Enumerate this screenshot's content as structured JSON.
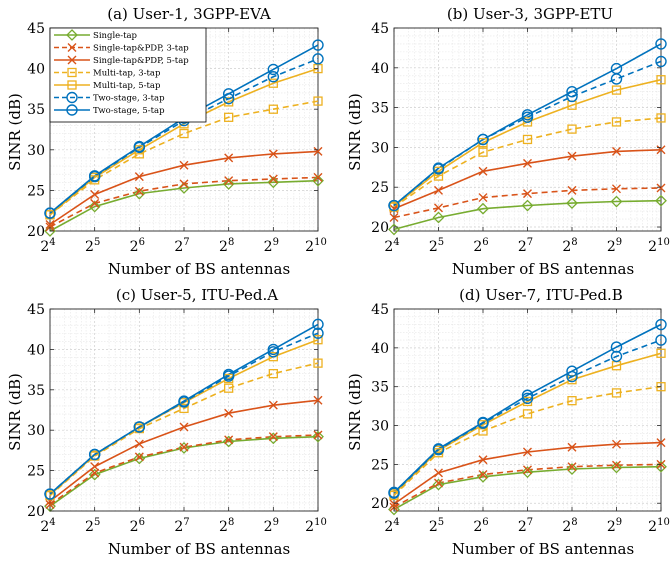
{
  "chart_data": [
    {
      "type": "line",
      "title": "(a) User-1, 3GPP-EVA",
      "xlabel": "Number of BS antennas",
      "ylabel": "SINR (dB)",
      "x": [
        4,
        5,
        6,
        7,
        8,
        9,
        10
      ],
      "x_ticks": [
        4,
        5,
        6,
        7,
        8,
        9,
        10
      ],
      "x_scale": "log2 (ticks 2^4 to 2^10)",
      "ylim": [
        20,
        45
      ],
      "y_ticks": [
        20,
        25,
        30,
        35,
        40,
        45
      ],
      "grid": true,
      "legend_position": "top-left",
      "series": [
        {
          "name": "Single-tap",
          "values": [
            20.0,
            23.0,
            24.6,
            25.3,
            25.8,
            26.0,
            26.2
          ]
        },
        {
          "name": "Single-tap&PDP, 3-tap",
          "values": [
            20.5,
            23.4,
            24.9,
            25.8,
            26.2,
            26.4,
            26.6
          ]
        },
        {
          "name": "Single-tap&PDP, 5-tap",
          "values": [
            20.8,
            24.5,
            26.7,
            28.1,
            29.0,
            29.5,
            29.8
          ]
        },
        {
          "name": "Multi-tap, 3-tap",
          "values": [
            22.0,
            26.3,
            29.5,
            32.0,
            34.0,
            35.0,
            36.0
          ]
        },
        {
          "name": "Multi-tap, 5-tap",
          "values": [
            22.0,
            26.6,
            30.0,
            33.2,
            35.9,
            38.2,
            40.0
          ]
        },
        {
          "name": "Two-stage, 3-tap",
          "values": [
            22.2,
            26.7,
            30.3,
            33.6,
            36.3,
            39.0,
            41.2
          ]
        },
        {
          "name": "Two-stage, 5-tap",
          "values": [
            22.2,
            26.8,
            30.4,
            33.9,
            36.9,
            39.9,
            42.9
          ]
        }
      ]
    },
    {
      "type": "line",
      "title": "(b) User-3, 3GPP-ETU",
      "xlabel": "Number of BS antennas",
      "ylabel": "SINR (dB)",
      "x": [
        4,
        5,
        6,
        7,
        8,
        9,
        10
      ],
      "x_ticks": [
        4,
        5,
        6,
        7,
        8,
        9,
        10
      ],
      "x_scale": "log2 (ticks 2^4 to 2^10)",
      "ylim": [
        19.5,
        45
      ],
      "y_ticks": [
        20,
        25,
        30,
        35,
        40,
        45
      ],
      "grid": true,
      "series": [
        {
          "name": "Single-tap",
          "values": [
            19.7,
            21.2,
            22.3,
            22.7,
            23.0,
            23.2,
            23.3
          ]
        },
        {
          "name": "Single-tap&PDP, 3-tap",
          "values": [
            21.2,
            22.4,
            23.7,
            24.2,
            24.6,
            24.8,
            24.9
          ]
        },
        {
          "name": "Single-tap&PDP, 5-tap",
          "values": [
            22.3,
            24.6,
            27.0,
            28.0,
            28.9,
            29.5,
            29.7
          ]
        },
        {
          "name": "Multi-tap, 3-tap",
          "values": [
            22.5,
            26.4,
            29.4,
            31.0,
            32.3,
            33.2,
            33.7
          ]
        },
        {
          "name": "Multi-tap, 5-tap",
          "values": [
            22.6,
            27.0,
            30.6,
            33.2,
            35.3,
            37.2,
            38.5
          ]
        },
        {
          "name": "Two-stage, 3-tap",
          "values": [
            22.7,
            27.3,
            31.0,
            33.8,
            36.4,
            38.6,
            40.8
          ]
        },
        {
          "name": "Two-stage, 5-tap",
          "values": [
            22.7,
            27.4,
            31.0,
            34.1,
            37.0,
            39.9,
            43.0
          ]
        }
      ]
    },
    {
      "type": "line",
      "title": "(c) User-5, ITU-Ped.A",
      "xlabel": "Number of BS antennas",
      "ylabel": "SINR (dB)",
      "x": [
        4,
        5,
        6,
        7,
        8,
        9,
        10
      ],
      "x_ticks": [
        4,
        5,
        6,
        7,
        8,
        9,
        10
      ],
      "x_scale": "log2 (ticks 2^4 to 2^10)",
      "ylim": [
        20,
        45
      ],
      "y_ticks": [
        20,
        25,
        30,
        35,
        40,
        45
      ],
      "grid": true,
      "series": [
        {
          "name": "Single-tap",
          "values": [
            20.6,
            24.5,
            26.5,
            27.8,
            28.6,
            29.0,
            29.2
          ]
        },
        {
          "name": "Single-tap&PDP, 3-tap",
          "values": [
            20.8,
            24.7,
            26.7,
            27.9,
            28.8,
            29.2,
            29.4
          ]
        },
        {
          "name": "Single-tap&PDP, 5-tap",
          "values": [
            21.2,
            25.5,
            28.3,
            30.4,
            32.1,
            33.1,
            33.7
          ]
        },
        {
          "name": "Multi-tap, 3-tap",
          "values": [
            21.9,
            26.8,
            30.2,
            32.7,
            35.2,
            37.0,
            38.3
          ]
        },
        {
          "name": "Multi-tap, 5-tap",
          "values": [
            22.0,
            26.9,
            30.4,
            33.4,
            36.4,
            39.1,
            41.2
          ]
        },
        {
          "name": "Two-stage, 3-tap",
          "values": [
            22.1,
            27.0,
            30.4,
            33.5,
            36.7,
            39.7,
            42.0
          ]
        },
        {
          "name": "Two-stage, 5-tap",
          "values": [
            22.1,
            27.0,
            30.4,
            33.6,
            36.9,
            40.0,
            43.1
          ]
        }
      ]
    },
    {
      "type": "line",
      "title": "(d) User-7, ITU-Ped.B",
      "xlabel": "Number of BS antennas",
      "ylabel": "SINR (dB)",
      "x": [
        4,
        5,
        6,
        7,
        8,
        9,
        10
      ],
      "x_ticks": [
        4,
        5,
        6,
        7,
        8,
        9,
        10
      ],
      "x_scale": "log2 (ticks 2^4 to 2^10)",
      "ylim": [
        19,
        45
      ],
      "y_ticks": [
        20,
        25,
        30,
        35,
        40,
        45
      ],
      "grid": true,
      "series": [
        {
          "name": "Single-tap",
          "values": [
            19.2,
            22.4,
            23.4,
            24.0,
            24.4,
            24.6,
            24.7
          ]
        },
        {
          "name": "Single-tap&PDP, 3-tap",
          "values": [
            19.5,
            22.6,
            23.7,
            24.3,
            24.7,
            24.9,
            25.0
          ]
        },
        {
          "name": "Single-tap&PDP, 5-tap",
          "values": [
            19.9,
            23.9,
            25.6,
            26.6,
            27.2,
            27.6,
            27.8
          ]
        },
        {
          "name": "Multi-tap, 3-tap",
          "values": [
            21.0,
            26.5,
            29.3,
            31.5,
            33.2,
            34.2,
            35.0
          ]
        },
        {
          "name": "Multi-tap, 5-tap",
          "values": [
            21.2,
            26.8,
            30.1,
            33.1,
            35.9,
            37.7,
            39.3
          ]
        },
        {
          "name": "Two-stage, 3-tap",
          "values": [
            21.3,
            26.9,
            30.3,
            33.5,
            36.3,
            38.9,
            41.0
          ]
        },
        {
          "name": "Two-stage, 5-tap",
          "values": [
            21.4,
            27.0,
            30.4,
            33.9,
            37.0,
            40.1,
            43.0
          ]
        }
      ]
    }
  ],
  "series_styles": [
    {
      "color": "#77AC30",
      "dash": "solid",
      "marker": "diamond"
    },
    {
      "color": "#D95319",
      "dash": "dashed",
      "marker": "x"
    },
    {
      "color": "#D95319",
      "dash": "solid",
      "marker": "x"
    },
    {
      "color": "#EDB120",
      "dash": "dashed",
      "marker": "square"
    },
    {
      "color": "#EDB120",
      "dash": "solid",
      "marker": "square"
    },
    {
      "color": "#0072BD",
      "dash": "dashed",
      "marker": "circle"
    },
    {
      "color": "#0072BD",
      "dash": "solid",
      "marker": "circle"
    }
  ],
  "legend_entries": [
    "Single-tap",
    "Single-tap&PDP, 3-tap",
    "Single-tap&PDP, 5-tap",
    "Multi-tap, 3-tap",
    "Multi-tap, 5-tap",
    "Two-stage, 3-tap",
    "Two-stage, 5-tap"
  ]
}
